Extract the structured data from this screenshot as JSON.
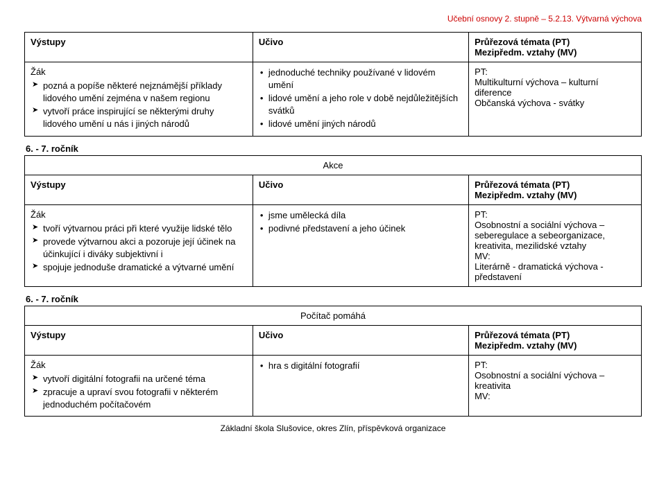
{
  "header": {
    "breadcrumb": "Učební osnovy 2. stupně – 5.2.13. Výtvarná výchova"
  },
  "table1": {
    "head": {
      "c1": "Výstupy",
      "c2": "Učivo",
      "c3a": "Průřezová témata (PT)",
      "c3b": "Mezipředm. vztahy (MV)"
    },
    "row": {
      "c1_lead": "Žák",
      "c1_items": [
        "pozná a popíše některé nejznámější příklady lidového umění zejména v našem regionu",
        "vytvoří práce inspirující se některými druhy lidového umění u nás i jiných národů"
      ],
      "c2_items": [
        " jednoduché techniky používané v lidovém umění",
        "lidové umění a jeho role v době nejdůležitějších svátků",
        "lidové umění jiných národů"
      ],
      "c3_pt_label": "PT:",
      "c3_pt_text": "Multikulturní výchova – kulturní diference",
      "c3_extra": "Občanská výchova - svátky"
    }
  },
  "grade_label": "6. - 7. ročník",
  "table2": {
    "section_title": "Akce",
    "head": {
      "c1": "Výstupy",
      "c2": "Učivo",
      "c3a": "Průřezová témata (PT)",
      "c3b": "Mezipředm. vztahy (MV)"
    },
    "row": {
      "c1_lead": "Žák",
      "c1_items": [
        "tvoří výtvarnou práci při které využije lidské tělo",
        "provede výtvarnou akci a pozoruje  její účinek na účinkující i diváky subjektivní i",
        "spojuje jednoduše dramatické a výtvarné umění"
      ],
      "c2_items": [
        "jsme umělecká díla",
        "podivné představení a jeho účinek"
      ],
      "c3_pt_label": "PT:",
      "c3_pt_lines": [
        "Osobnostní a sociální výchova – seberegulace a sebeorganizace, kreativita, mezilidské vztahy"
      ],
      "c3_mv_label": "MV:",
      "c3_mv_lines": [
        "Literárně - dramatická výchova - představení"
      ]
    }
  },
  "table3": {
    "section_title": "Počítač pomáhá",
    "head": {
      "c1": "Výstupy",
      "c2": "Učivo",
      "c3a": "Průřezová témata (PT)",
      "c3b": "Mezipředm. vztahy (MV)"
    },
    "row": {
      "c1_lead": "Žák",
      "c1_items": [
        "vytvoří digitální fotografii na určené téma",
        "zpracuje a upraví svou fotografii v některém jednoduchém počítačovém"
      ],
      "c2_items": [
        "hra s digitální fotografií"
      ],
      "c3_pt_label": "PT:",
      "c3_pt_lines": [
        "Osobnostní a sociální výchova – kreativita"
      ],
      "c3_mv_label": "MV:"
    }
  },
  "footer": "Základní škola Slušovice, okres Zlín, příspěvková organizace",
  "colors": {
    "header_color": "#cc0000",
    "text": "#000000",
    "border": "#000000",
    "background": "#ffffff"
  }
}
